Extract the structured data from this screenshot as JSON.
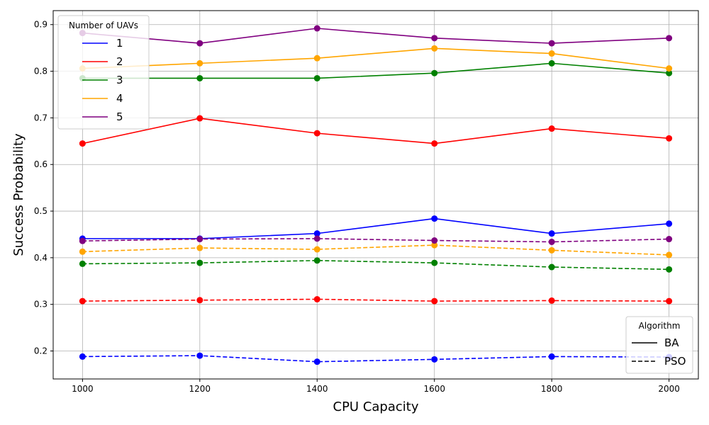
{
  "chart_data": {
    "type": "line",
    "xlabel": "CPU Capacity",
    "ylabel": "Success Probability",
    "x": [
      1000,
      1200,
      1400,
      1600,
      1800,
      2000
    ],
    "xlim": [
      950,
      2050
    ],
    "ylim": [
      0.14,
      0.93
    ],
    "xticks": [
      1000,
      1200,
      1400,
      1600,
      1800,
      2000
    ],
    "yticks": [
      0.2,
      0.3,
      0.4,
      0.5,
      0.6,
      0.7,
      0.8,
      0.9
    ],
    "grid": true,
    "series": [
      {
        "group": "1",
        "algorithm": "BA",
        "color": "#0000ff",
        "dash": "solid",
        "values": [
          0.441,
          0.441,
          0.452,
          0.484,
          0.452,
          0.473
        ]
      },
      {
        "group": "2",
        "algorithm": "BA",
        "color": "#ff0000",
        "dash": "solid",
        "values": [
          0.645,
          0.699,
          0.667,
          0.645,
          0.677,
          0.656
        ]
      },
      {
        "group": "3",
        "algorithm": "BA",
        "color": "#008000",
        "dash": "solid",
        "values": [
          0.785,
          0.785,
          0.785,
          0.796,
          0.817,
          0.796
        ]
      },
      {
        "group": "4",
        "algorithm": "BA",
        "color": "#ffa500",
        "dash": "solid",
        "values": [
          0.806,
          0.817,
          0.828,
          0.849,
          0.838,
          0.806
        ]
      },
      {
        "group": "5",
        "algorithm": "BA",
        "color": "#800080",
        "dash": "solid",
        "values": [
          0.882,
          0.86,
          0.892,
          0.871,
          0.86,
          0.871
        ]
      },
      {
        "group": "1",
        "algorithm": "PSO",
        "color": "#0000ff",
        "dash": "dashed",
        "values": [
          0.188,
          0.19,
          0.177,
          0.182,
          0.188,
          0.187
        ]
      },
      {
        "group": "2",
        "algorithm": "PSO",
        "color": "#ff0000",
        "dash": "dashed",
        "values": [
          0.307,
          0.309,
          0.311,
          0.307,
          0.308,
          0.307
        ]
      },
      {
        "group": "3",
        "algorithm": "PSO",
        "color": "#008000",
        "dash": "dashed",
        "values": [
          0.387,
          0.389,
          0.394,
          0.389,
          0.38,
          0.375
        ]
      },
      {
        "group": "4",
        "algorithm": "PSO",
        "color": "#ffa500",
        "dash": "dashed",
        "values": [
          0.413,
          0.421,
          0.418,
          0.427,
          0.416,
          0.406
        ]
      },
      {
        "group": "5",
        "algorithm": "PSO",
        "color": "#800080",
        "dash": "dashed",
        "values": [
          0.436,
          0.44,
          0.441,
          0.437,
          0.434,
          0.44
        ]
      }
    ],
    "legend_groups": {
      "title": "Number of UAVs",
      "placement": "top-left",
      "entries": [
        {
          "label": "1",
          "color": "#0000ff"
        },
        {
          "label": "2",
          "color": "#ff0000"
        },
        {
          "label": "3",
          "color": "#008000"
        },
        {
          "label": "4",
          "color": "#ffa500"
        },
        {
          "label": "5",
          "color": "#800080"
        }
      ]
    },
    "legend_algorithm": {
      "title": "Algorithm",
      "placement": "bottom-right",
      "entries": [
        {
          "label": "BA",
          "dash": "solid"
        },
        {
          "label": "PSO",
          "dash": "dashed"
        }
      ]
    }
  }
}
